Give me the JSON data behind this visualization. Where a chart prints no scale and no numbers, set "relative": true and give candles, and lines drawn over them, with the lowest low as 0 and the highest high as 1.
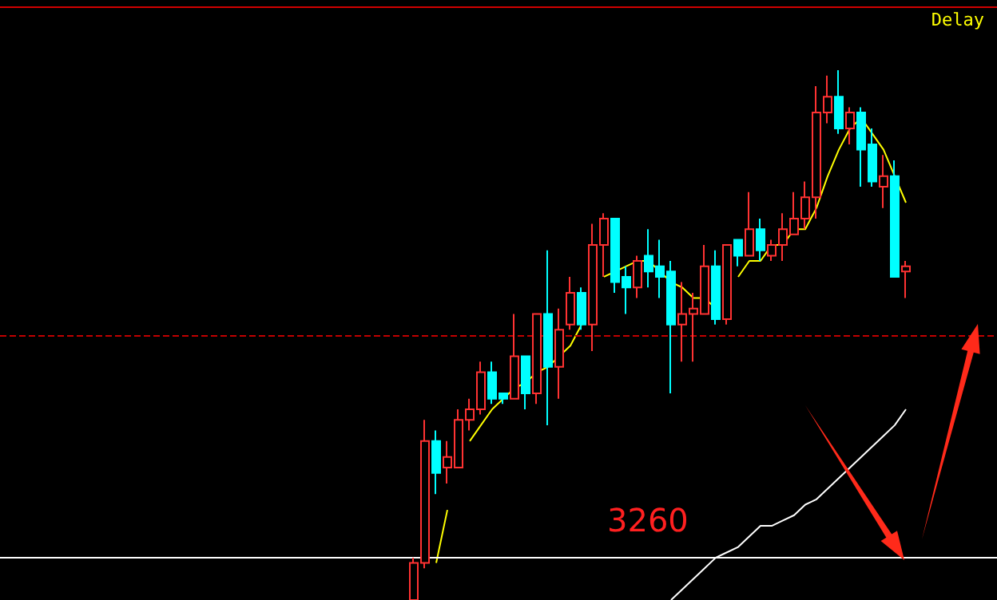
{
  "chart_data": {
    "type": "candlestick",
    "relative": true,
    "marker": "none",
    "categories": [
      null,
      null,
      null,
      null,
      null,
      null,
      null,
      null,
      null,
      null,
      null,
      null,
      null,
      null,
      null,
      null,
      null,
      null,
      null,
      null,
      null,
      null,
      null,
      null,
      null,
      null,
      null,
      null,
      null,
      null,
      null,
      null,
      null,
      null,
      null,
      null,
      null,
      null,
      null,
      null,
      null,
      null,
      null,
      null,
      null
    ],
    "ohlc": [
      [
        0,
        0.08,
        0,
        0.07
      ],
      [
        0.07,
        0.34,
        0.06,
        0.3
      ],
      [
        0.3,
        0.32,
        0.2,
        0.24
      ],
      [
        0.25,
        0.3,
        0.22,
        0.27
      ],
      [
        0.25,
        0.36,
        0.25,
        0.34
      ],
      [
        0.34,
        0.38,
        0.32,
        0.36
      ],
      [
        0.36,
        0.45,
        0.35,
        0.43
      ],
      [
        0.43,
        0.45,
        0.37,
        0.38
      ],
      [
        0.39,
        0.39,
        0.37,
        0.38
      ],
      [
        0.38,
        0.54,
        0.38,
        0.46
      ],
      [
        0.46,
        0.46,
        0.36,
        0.39
      ],
      [
        0.39,
        0.54,
        0.37,
        0.54
      ],
      [
        0.54,
        0.66,
        0.33,
        0.44
      ],
      [
        0.44,
        0.55,
        0.38,
        0.51
      ],
      [
        0.52,
        0.61,
        0.51,
        0.58
      ],
      [
        0.58,
        0.59,
        0.51,
        0.52
      ],
      [
        0.52,
        0.71,
        0.47,
        0.67
      ],
      [
        0.67,
        0.73,
        0.61,
        0.72
      ],
      [
        0.72,
        0.72,
        0.58,
        0.6
      ],
      [
        0.61,
        0.63,
        0.54,
        0.59
      ],
      [
        0.59,
        0.65,
        0.57,
        0.64
      ],
      [
        0.65,
        0.7,
        0.59,
        0.62
      ],
      [
        0.63,
        0.68,
        0.57,
        0.61
      ],
      [
        0.62,
        0.64,
        0.39,
        0.52
      ],
      [
        0.52,
        0.6,
        0.45,
        0.54
      ],
      [
        0.54,
        0.58,
        0.45,
        0.55
      ],
      [
        0.54,
        0.67,
        0.54,
        0.63
      ],
      [
        0.63,
        0.66,
        0.52,
        0.53
      ],
      [
        0.53,
        0.67,
        0.52,
        0.67
      ],
      [
        0.68,
        0.68,
        0.63,
        0.65
      ],
      [
        0.65,
        0.77,
        0.65,
        0.7
      ],
      [
        0.7,
        0.72,
        0.64,
        0.66
      ],
      [
        0.65,
        0.68,
        0.64,
        0.67
      ],
      [
        0.67,
        0.73,
        0.64,
        0.7
      ],
      [
        0.69,
        0.77,
        0.69,
        0.72
      ],
      [
        0.72,
        0.79,
        0.7,
        0.76
      ],
      [
        0.76,
        0.97,
        0.72,
        0.92
      ],
      [
        0.92,
        0.99,
        0.9,
        0.95
      ],
      [
        0.95,
        1,
        0.88,
        0.89
      ],
      [
        0.89,
        0.93,
        0.86,
        0.92
      ],
      [
        0.92,
        0.93,
        0.78,
        0.85
      ],
      [
        0.86,
        0.89,
        0.78,
        0.79
      ],
      [
        0.78,
        0.84,
        0.74,
        0.8
      ],
      [
        0.8,
        0.83,
        0.61,
        0.61
      ],
      [
        0.62,
        0.64,
        0.57,
        0.63
      ]
    ],
    "series": [
      {
        "type": "line",
        "color": "#ffff00",
        "values": [
          null,
          null,
          0.07,
          0.17,
          null,
          0.3,
          0.33,
          0.36,
          0.38,
          0.4,
          0.41,
          0.43,
          0.44,
          0.46,
          0.48,
          0.52,
          null,
          0.61,
          0.62,
          0.63,
          0.64,
          0.64,
          0.62,
          0.6,
          0.59,
          0.57,
          0.57,
          0.55,
          null,
          0.61,
          0.64,
          0.64,
          0.67,
          0.67,
          0.7,
          0.7,
          0.74,
          0.8,
          0.85,
          0.89,
          0.91,
          0.88,
          0.85,
          0.8,
          0.75
        ]
      },
      {
        "type": "line",
        "color": "#ffffff",
        "values": [
          null,
          null,
          null,
          null,
          null,
          null,
          null,
          null,
          null,
          null,
          null,
          null,
          null,
          null,
          null,
          null,
          null,
          null,
          null,
          null,
          null,
          null,
          null,
          0,
          0.02,
          0.04,
          0.06,
          0.08,
          0.09,
          0.1,
          0.12,
          0.14,
          0.14,
          0.15,
          0.16,
          0.18,
          0.19,
          0.21,
          0.23,
          0.25,
          0.27,
          0.29,
          0.31,
          0.33,
          0.36
        ]
      }
    ],
    "ref_lines": [
      {
        "axis": "y",
        "value": 0.5,
        "color": "#c00000",
        "line_style": "dashed"
      },
      {
        "axis": "y",
        "value": 0.08,
        "color": "#ffffff",
        "line_style": "solid"
      }
    ],
    "annotations": [
      "Delay",
      "3260"
    ]
  }
}
